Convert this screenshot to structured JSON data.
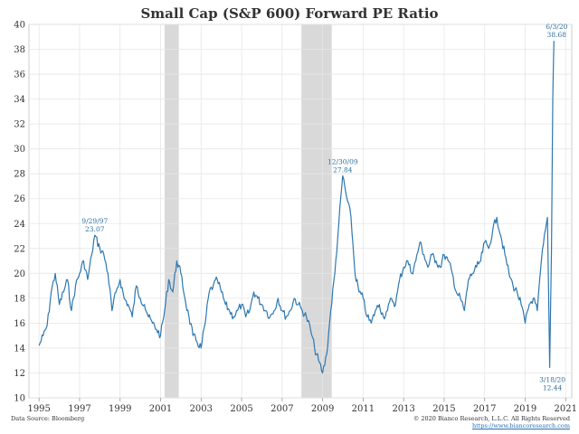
{
  "title": "Small Cap (S&P 600) Forward PE Ratio",
  "source": "Data Source: Bloomberg",
  "copyright": "© 2020 Bianco Research, L.L.C. All Rights Reserved",
  "website": "https://www.biancoresearch.com",
  "chart_data": {
    "type": "line",
    "title": "Small Cap (S&P 600) Forward PE Ratio",
    "xlabel": "",
    "ylabel": "",
    "xlim": [
      1994.5,
      2021.3
    ],
    "ylim": [
      10,
      40
    ],
    "x_ticks": [
      "1995",
      "1997",
      "1999",
      "2001",
      "2003",
      "2005",
      "2007",
      "2009",
      "2011",
      "2013",
      "2015",
      "2017",
      "2019",
      "2021"
    ],
    "y_ticks": [
      "10",
      "12",
      "14",
      "16",
      "18",
      "20",
      "22",
      "24",
      "26",
      "28",
      "30",
      "32",
      "34",
      "36",
      "38",
      "40"
    ],
    "grid": true,
    "legend": "none",
    "line_color": "#2e78b0",
    "recession_color": "#d9d9d9",
    "recessions": [
      {
        "start": 2001.2,
        "end": 2001.9
      },
      {
        "start": 2007.95,
        "end": 2009.45
      }
    ],
    "series": [
      {
        "x": [
          1995.0,
          1995.2,
          1995.4,
          1995.6,
          1995.8,
          1996.0,
          1996.2,
          1996.4,
          1996.6,
          1996.8,
          1997.0,
          1997.2,
          1997.4,
          1997.6,
          1997.75,
          1998.0,
          1998.2,
          1998.4,
          1998.6,
          1998.8,
          1999.0,
          1999.2,
          1999.4,
          1999.6,
          1999.8,
          2000.0,
          2000.2,
          2000.4,
          2000.6,
          2000.8,
          2001.0,
          2001.2,
          2001.4,
          2001.6,
          2001.8,
          2002.0,
          2002.2,
          2002.4,
          2002.6,
          2002.8,
          2003.0,
          2003.2,
          2003.4,
          2003.6,
          2003.8,
          2004.0,
          2004.2,
          2004.4,
          2004.6,
          2004.8,
          2005.0,
          2005.2,
          2005.4,
          2005.6,
          2005.8,
          2006.0,
          2006.2,
          2006.4,
          2006.6,
          2006.8,
          2007.0,
          2007.2,
          2007.4,
          2007.6,
          2007.8,
          2008.0,
          2008.2,
          2008.4,
          2008.6,
          2008.8,
          2009.0,
          2009.2,
          2009.4,
          2009.6,
          2009.8,
          2009.99,
          2010.2,
          2010.4,
          2010.6,
          2010.8,
          2011.0,
          2011.2,
          2011.4,
          2011.6,
          2011.8,
          2012.0,
          2012.2,
          2012.4,
          2012.6,
          2012.8,
          2013.0,
          2013.2,
          2013.4,
          2013.6,
          2013.8,
          2014.0,
          2014.2,
          2014.4,
          2014.6,
          2014.8,
          2015.0,
          2015.2,
          2015.4,
          2015.6,
          2015.8,
          2016.0,
          2016.2,
          2016.4,
          2016.6,
          2016.8,
          2017.0,
          2017.2,
          2017.4,
          2017.6,
          2017.8,
          2018.0,
          2018.2,
          2018.4,
          2018.6,
          2018.8,
          2019.0,
          2019.2,
          2019.4,
          2019.6,
          2019.8,
          2020.0,
          2020.1,
          2020.21,
          2020.3,
          2020.36,
          2020.42
        ],
        "y": [
          14.2,
          15.0,
          15.8,
          18.5,
          20.0,
          17.5,
          18.5,
          19.5,
          17.0,
          19.0,
          20.0,
          21.0,
          19.5,
          21.5,
          23.07,
          22.0,
          21.5,
          20.0,
          17.0,
          18.5,
          19.5,
          18.0,
          17.5,
          16.5,
          19.0,
          18.0,
          17.5,
          16.5,
          16.0,
          15.5,
          15.0,
          17.0,
          19.5,
          18.5,
          21.0,
          20.0,
          18.0,
          16.5,
          15.0,
          14.5,
          14.0,
          16.0,
          18.5,
          19.0,
          19.5,
          18.5,
          17.5,
          17.0,
          16.5,
          17.0,
          17.5,
          16.5,
          17.0,
          18.5,
          18.0,
          17.5,
          17.0,
          16.5,
          17.0,
          18.0,
          17.0,
          16.5,
          17.0,
          18.0,
          17.5,
          17.0,
          16.5,
          15.5,
          14.0,
          13.0,
          12.0,
          13.5,
          17.0,
          20.0,
          24.0,
          27.84,
          26.0,
          24.5,
          20.0,
          18.5,
          18.0,
          16.5,
          16.0,
          17.0,
          17.5,
          16.5,
          17.0,
          18.0,
          17.5,
          19.5,
          20.5,
          21.0,
          20.0,
          21.0,
          22.5,
          21.5,
          20.5,
          21.5,
          21.0,
          20.5,
          21.5,
          21.0,
          20.0,
          18.5,
          18.0,
          17.0,
          19.5,
          20.0,
          20.5,
          21.0,
          22.5,
          22.0,
          23.5,
          24.5,
          23.0,
          21.5,
          20.0,
          19.0,
          18.5,
          17.5,
          16.0,
          17.5,
          18.0,
          17.0,
          21.0,
          23.5,
          24.5,
          12.44,
          22.0,
          34.0,
          38.68
        ]
      }
    ],
    "annotations": [
      {
        "date": "9/29/97",
        "value": "23.07",
        "x": 1997.75,
        "y": 23.07
      },
      {
        "date": "12/30/09",
        "value": "27.84",
        "x": 2009.99,
        "y": 27.84
      },
      {
        "date": "3/18/20",
        "value": "12.44",
        "x": 2020.21,
        "y": 12.44
      },
      {
        "date": "6/3/20",
        "value": "38.68",
        "x": 2020.42,
        "y": 38.68
      }
    ]
  }
}
